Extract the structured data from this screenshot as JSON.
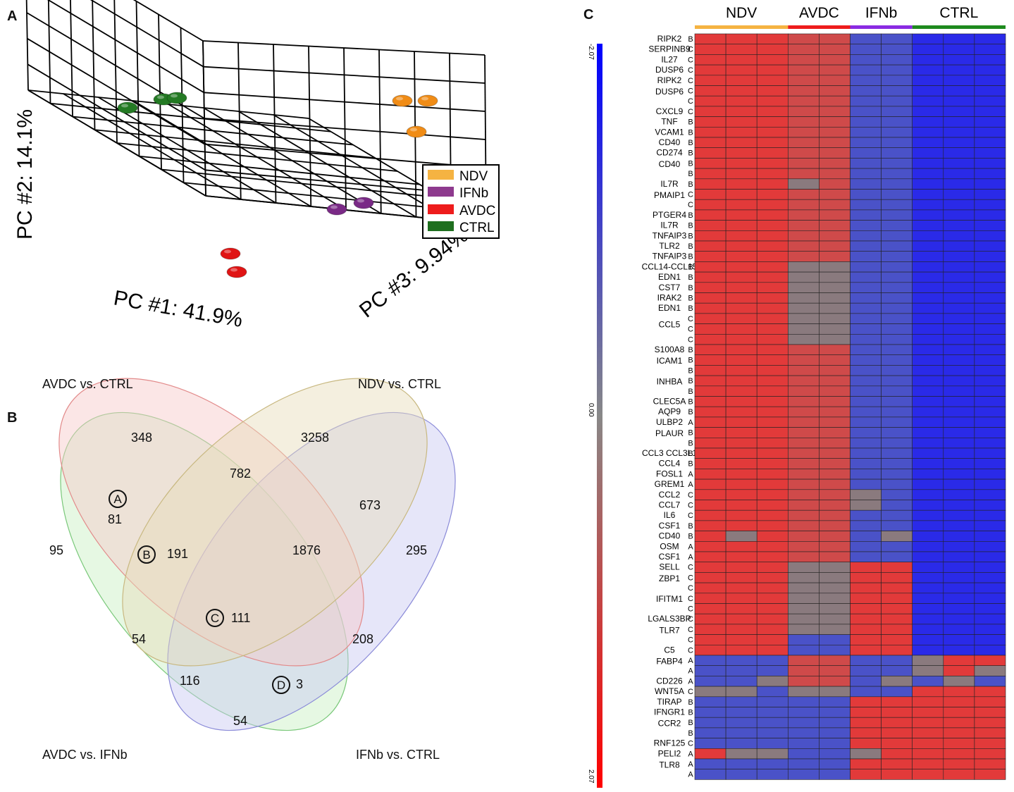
{
  "panels": {
    "a": "A",
    "b": "B",
    "c": "C"
  },
  "pca": {
    "axis_pc1": "PC #1: 41.9%",
    "axis_pc2": "PC #2: 14.1%",
    "axis_pc3": "PC #3: 9.94%",
    "legend": [
      {
        "label": "NDV",
        "color": "#f5b342"
      },
      {
        "label": "IFNb",
        "color": "#8e3a8e"
      },
      {
        "label": "AVDC",
        "color": "#ee1c1c"
      },
      {
        "label": "CTRL",
        "color": "#1f6f1f"
      }
    ],
    "groups": [
      {
        "name": "CTRL",
        "count": 3,
        "color": "#247a24"
      },
      {
        "name": "NDV",
        "count": 3,
        "color": "#f08c16"
      },
      {
        "name": "IFNb",
        "count": 2,
        "color": "#7a2a86"
      },
      {
        "name": "AVDC",
        "count": 2,
        "color": "#e01414"
      }
    ]
  },
  "venn": {
    "set_labels": {
      "avdc_ctrl": "AVDC vs. CTRL",
      "ndv_ctrl": "NDV vs. CTRL",
      "avdc_ifnb": "AVDC vs. IFNb",
      "ifnb_ctrl": "IFNb vs. CTRL"
    },
    "counts": {
      "c348": "348",
      "c3258": "3258",
      "c782": "782",
      "c673": "673",
      "c81": "81",
      "c95": "95",
      "c191": "191",
      "c1876": "1876",
      "c295": "295",
      "c111": "111",
      "c54a": "54",
      "c208": "208",
      "c116": "116",
      "c3": "3",
      "c54b": "54"
    },
    "markers": {
      "a": "A",
      "b": "B",
      "c": "C",
      "d": "D"
    }
  },
  "heatmap": {
    "groups": [
      {
        "label": "NDV",
        "cols": 3,
        "color": "#f5b342"
      },
      {
        "label": "AVDC",
        "cols": 2,
        "color": "#ee1c1c"
      },
      {
        "label": "IFNb",
        "cols": 2,
        "color": "#8a2be2"
      },
      {
        "label": "CTRL",
        "cols": 3,
        "color": "#1e8a1e"
      }
    ],
    "scale": {
      "top": "-2.07",
      "mid": "0.00",
      "bottom": "2.07"
    },
    "rows": [
      {
        "gene": "RIPK2",
        "cls": "B"
      },
      {
        "gene": "SERPINB9",
        "cls": "C"
      },
      {
        "gene": "IL27",
        "cls": "C"
      },
      {
        "gene": "DUSP6",
        "cls": "C"
      },
      {
        "gene": "RIPK2",
        "cls": "C"
      },
      {
        "gene": "",
        "cls": "C"
      },
      {
        "gene": "",
        "cls": "C"
      },
      {
        "gene": "CXCL9",
        "cls": "C"
      },
      {
        "gene": "TNF",
        "cls": "B"
      },
      {
        "gene": "VCAM1",
        "cls": "B"
      },
      {
        "gene": "CD40",
        "cls": "B"
      },
      {
        "gene": "CD274",
        "cls": "B"
      },
      {
        "gene": "",
        "cls": "B"
      },
      {
        "gene": "",
        "cls": "B"
      },
      {
        "gene": "IL7R",
        "cls": "B"
      },
      {
        "gene": "",
        "cls": "C"
      },
      {
        "gene": "",
        "cls": "C"
      },
      {
        "gene": "PTGER4",
        "cls": "B"
      },
      {
        "gene": "IL7R",
        "cls": "B"
      },
      {
        "gene": "TNFAIP3",
        "cls": "B"
      },
      {
        "gene": "TLR2",
        "cls": "B"
      },
      {
        "gene": "TNFAIP3",
        "cls": "B"
      },
      {
        "gene": "CCL14-CCL15",
        "cls": "B"
      },
      {
        "gene": "EDN1",
        "cls": "B"
      },
      {
        "gene": "CST7",
        "cls": "B"
      },
      {
        "gene": "IRAK2",
        "cls": "B"
      },
      {
        "gene": "EDN1",
        "cls": "B"
      },
      {
        "gene": "",
        "cls": "C"
      },
      {
        "gene": "",
        "cls": "C"
      },
      {
        "gene": "",
        "cls": "C"
      },
      {
        "gene": "S100A8",
        "cls": "B"
      },
      {
        "gene": "",
        "cls": "B"
      },
      {
        "gene": "",
        "cls": "B"
      },
      {
        "gene": "",
        "cls": "B"
      },
      {
        "gene": "",
        "cls": "B"
      },
      {
        "gene": "CLEC5A",
        "cls": "B"
      },
      {
        "gene": "AQP9",
        "cls": "B"
      },
      {
        "gene": "ULBP2",
        "cls": "A"
      },
      {
        "gene": "",
        "cls": "B"
      },
      {
        "gene": "",
        "cls": "B"
      },
      {
        "gene": "CCL3 CCL3L1",
        "cls": "B"
      },
      {
        "gene": "CCL4",
        "cls": "B"
      },
      {
        "gene": "FOSL1",
        "cls": "A"
      },
      {
        "gene": "GREM1",
        "cls": "A"
      },
      {
        "gene": "CCL2",
        "cls": "C"
      },
      {
        "gene": "CCL7",
        "cls": "C"
      },
      {
        "gene": "IL6",
        "cls": "C"
      },
      {
        "gene": "CSF1",
        "cls": "B"
      },
      {
        "gene": "CD40",
        "cls": "B"
      },
      {
        "gene": "OSM",
        "cls": "A"
      },
      {
        "gene": "CSF1",
        "cls": "A"
      },
      {
        "gene": "SELL",
        "cls": "C"
      },
      {
        "gene": "",
        "cls": "C"
      },
      {
        "gene": "",
        "cls": "C"
      },
      {
        "gene": "",
        "cls": "C"
      },
      {
        "gene": "",
        "cls": "C"
      },
      {
        "gene": "LGALS3BP",
        "cls": "C"
      },
      {
        "gene": "",
        "cls": "C"
      },
      {
        "gene": "",
        "cls": "C"
      },
      {
        "gene": "C5",
        "cls": "C"
      },
      {
        "gene": "",
        "cls": "A"
      },
      {
        "gene": "",
        "cls": "A"
      },
      {
        "gene": "CD226",
        "cls": "A"
      },
      {
        "gene": "WNT5A",
        "cls": "C"
      },
      {
        "gene": "TIRAP",
        "cls": "B"
      },
      {
        "gene": "IFNGR1",
        "cls": "B"
      },
      {
        "gene": "",
        "cls": "B"
      },
      {
        "gene": "",
        "cls": "B"
      },
      {
        "gene": "RNF125",
        "cls": "C"
      },
      {
        "gene": "PELI2",
        "cls": "A"
      },
      {
        "gene": "",
        "cls": "A"
      },
      {
        "gene": "",
        "cls": "A"
      }
    ],
    "group_labels": [
      {
        "gene": "DUSP6",
        "row": 5.5
      },
      {
        "gene": "CD40",
        "row": 12.5
      },
      {
        "gene": "PMAIP1",
        "row": 15.5
      },
      {
        "gene": "CCL5",
        "row": 28
      },
      {
        "gene": "ICAM1",
        "row": 31.5
      },
      {
        "gene": "INHBA",
        "row": 33.5
      },
      {
        "gene": "PLAUR",
        "row": 38.5
      },
      {
        "gene": "ZBP1",
        "row": 52.5
      },
      {
        "gene": "IFITM1",
        "row": 54.5
      },
      {
        "gene": "TLR7",
        "row": 57.5
      },
      {
        "gene": "FABP4",
        "row": 60.5
      },
      {
        "gene": "CCR2",
        "row": 66.5
      },
      {
        "gene": "TLR8",
        "row": 70.5
      }
    ],
    "patterns": [
      "rrrRR bbBBB",
      "rrrRR bbBBB",
      "rrrRR bbBBB",
      "rrrRR bbBBB",
      "rrrRR bbBBB",
      "rrrRR bbBBB",
      "rrrRR bbBBB",
      "rrrRR bbBBB",
      "rrrRR bbBBB",
      "rrrRR bbBBB",
      "rrrRR bbBBB",
      "rrrRR bbBBB",
      "rrrRR bbBBB",
      "rrrRR bbBBB",
      "rrrgR bbBBB",
      "rrrRR bbBBB",
      "rrrRR bbBBB",
      "rrrRR bbBBB",
      "rrrRR bbBBB",
      "rrrRR bbBBB",
      "rrrRR bbBBB",
      "rrrRR bbBBB",
      "rrrgg bbBBB",
      "rrrgg bbBBB",
      "rrrgg bbBBB",
      "rrrgg bbBBB",
      "rrrgg bbBBB",
      "rrrgg bbBBB",
      "rrrgg bbBBB",
      "rrrgg bbBBB",
      "rrrRR bbBBB",
      "rrrRR bbBBB",
      "rrrRR bbBBB",
      "rrrRR bbBBB",
      "rrrRR bbBBB",
      "rrrRR bbBBB",
      "rrrRR bbBBB",
      "rrrRR bbBBB",
      "rrrRR bbBBB",
      "rrrRR bbBBB",
      "rrrRR bbBBB",
      "rrrRR bbBBB",
      "rrrRR bbBBB",
      "rrrRR bbBBB",
      "rrrRR gbBBB",
      "rrrRR gbBBB",
      "rrrRR bbBBB",
      "rrrRR bbBBB",
      "rgrRR bgBBB",
      "rrrRR bbBBB",
      "rrrRR bbBBB",
      "rrrgg rrBBB",
      "rrrgg rrBBB",
      "rrrgg rrBBB",
      "rrrgg rrBBB",
      "rrrgg rrBBB",
      "rrrgg rrBBB",
      "rrrgg rrBBB",
      "rrrbb rrBBB",
      "rrrbb rrBBB",
      "bbbRR bbgrr",
      "bbbRR bbgrg",
      "bbgRR bgbgb",
      "ggbgg bbrrr",
      "bbbbb rrrrr",
      "bbbbb rrrrr",
      "bbbbb rrrrr",
      "bbbbb rrrrr",
      "bbbbb rrrrr",
      "rggbb grrrr",
      "bbbbb rrrrr",
      "bbbbb rrrrr"
    ]
  }
}
